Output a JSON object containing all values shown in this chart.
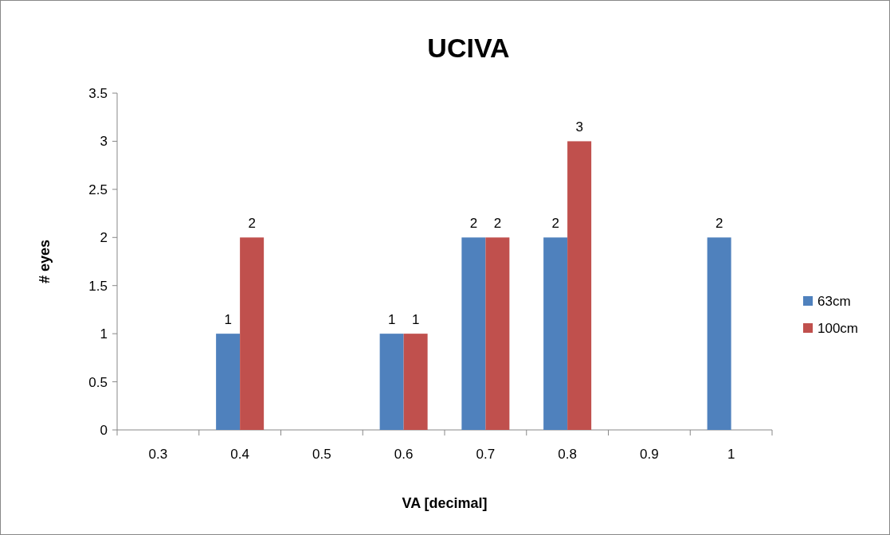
{
  "chart_data": {
    "type": "bar",
    "title": "UCIVA",
    "xlabel": "VA [decimal]",
    "ylabel": "# eyes",
    "categories": [
      "0.3",
      "0.4",
      "0.5",
      "0.6",
      "0.7",
      "0.8",
      "0.9",
      "1"
    ],
    "series": [
      {
        "name": "63cm",
        "color": "#4f81bd",
        "values": [
          null,
          1,
          null,
          1,
          2,
          2,
          null,
          2
        ]
      },
      {
        "name": "100cm",
        "color": "#c0504d",
        "values": [
          null,
          2,
          null,
          1,
          2,
          3,
          null,
          null
        ]
      }
    ],
    "ylim": [
      0,
      3.5
    ],
    "yticks": [
      0,
      0.5,
      1,
      1.5,
      2,
      2.5,
      3,
      3.5
    ],
    "grid": false,
    "legend": "right",
    "data_labels": true
  }
}
